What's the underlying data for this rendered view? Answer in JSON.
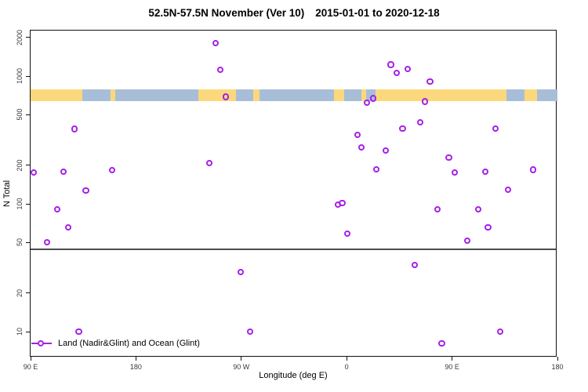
{
  "title": {
    "main": "52.5N-57.5N November (Ver 10)",
    "date_range": "2015-01-01 to 2020-12-18"
  },
  "legend": {
    "label": "Land (Nadir&Glint) and Ocean (Glint)"
  },
  "colors": {
    "point": "#a520e8",
    "land": "#fcd87d",
    "ocean": "#a8bed8",
    "reference_line": "#4d4d4d",
    "axis": "#111111"
  },
  "chart_data": {
    "type": "scatter",
    "title": "52.5N-57.5N November (Ver 10)  2015-01-01 to 2020-12-18",
    "xlabel": "Longitude (deg E)",
    "ylabel": "N Total",
    "y_scale": "log",
    "ylim": [
      7,
      2400
    ],
    "y_ticks": [
      2000,
      1000,
      500,
      200,
      100,
      50,
      20,
      10
    ],
    "x_axis_note": "longitude increases eastward and wraps: 90E to 180 to 90W to 0 to 90E to 180; stored as continuous deg E 90-540",
    "x_range_degE": [
      90,
      540
    ],
    "x_ticks": [
      {
        "lon": 90,
        "label": "90 E"
      },
      {
        "lon": 180,
        "label": "180"
      },
      {
        "lon": 270,
        "label": "90 W"
      },
      {
        "lon": 360,
        "label": "0"
      },
      {
        "lon": 450,
        "label": "90 E"
      },
      {
        "lon": 540,
        "label": "180"
      }
    ],
    "reference_line_n": 44,
    "map_strip": {
      "n_top": 790,
      "n_bottom": 640,
      "segments": [
        {
          "from": 90,
          "to": 134,
          "type": "land"
        },
        {
          "from": 134,
          "to": 158.5,
          "type": "ocean"
        },
        {
          "from": 158.5,
          "to": 162.5,
          "type": "land"
        },
        {
          "from": 162.5,
          "to": 233.5,
          "type": "ocean"
        },
        {
          "from": 233.5,
          "to": 265.5,
          "type": "land"
        },
        {
          "from": 265.5,
          "to": 280,
          "type": "ocean"
        },
        {
          "from": 280,
          "to": 285.5,
          "type": "land"
        },
        {
          "from": 285.5,
          "to": 349,
          "type": "ocean"
        },
        {
          "from": 349,
          "to": 358,
          "type": "land"
        },
        {
          "from": 358,
          "to": 372.5,
          "type": "ocean"
        },
        {
          "from": 372.5,
          "to": 376.5,
          "type": "land"
        },
        {
          "from": 376.5,
          "to": 384.5,
          "type": "ocean"
        },
        {
          "from": 384.5,
          "to": 496.5,
          "type": "land"
        },
        {
          "from": 496.5,
          "to": 512,
          "type": "ocean"
        },
        {
          "from": 512,
          "to": 522.5,
          "type": "land"
        },
        {
          "from": 522.5,
          "to": 540,
          "type": "ocean"
        }
      ]
    },
    "series": [
      {
        "name": "Land (Nadir&Glint) and Ocean (Glint)",
        "points_lon_n": [
          [
            93,
            175
          ],
          [
            104.5,
            50
          ],
          [
            113,
            90
          ],
          [
            118.5,
            177
          ],
          [
            122.5,
            65
          ],
          [
            128,
            383
          ],
          [
            131.5,
            10
          ],
          [
            137.5,
            126
          ],
          [
            160,
            182
          ],
          [
            243,
            208
          ],
          [
            248.5,
            1790
          ],
          [
            252.5,
            1115
          ],
          [
            257,
            683
          ],
          [
            269.5,
            29
          ],
          [
            277.5,
            10
          ],
          [
            352.5,
            98
          ],
          [
            356.5,
            101
          ],
          [
            361,
            58
          ],
          [
            369.5,
            346
          ],
          [
            373,
            276
          ],
          [
            377.5,
            616
          ],
          [
            383,
            664
          ],
          [
            385.5,
            186
          ],
          [
            393.5,
            261
          ],
          [
            398,
            1219
          ],
          [
            403,
            1048
          ],
          [
            408,
            385
          ],
          [
            412.5,
            1135
          ],
          [
            418.5,
            33
          ],
          [
            423,
            434
          ],
          [
            427,
            628
          ],
          [
            431.5,
            897
          ],
          [
            438,
            90
          ],
          [
            441.5,
            8
          ],
          [
            447.5,
            229
          ],
          [
            452.5,
            175
          ],
          [
            463.5,
            51
          ],
          [
            472.5,
            90
          ],
          [
            478.5,
            177
          ],
          [
            481,
            65
          ],
          [
            487.5,
            384
          ],
          [
            491.5,
            10
          ],
          [
            498,
            128
          ],
          [
            519.5,
            184
          ]
        ]
      }
    ],
    "legend_position": "bottom-left"
  }
}
